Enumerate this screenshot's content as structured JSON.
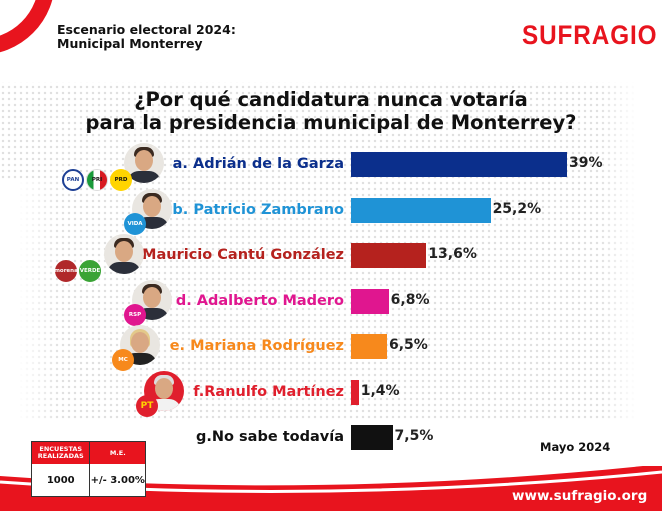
{
  "header": {
    "title_line1": "Escenario electoral 2024:",
    "title_line2": "Municipal Monterrey",
    "logo_text": "SUFRAGIO",
    "brand_color": "#e8141e"
  },
  "chart_data": {
    "type": "bar",
    "orientation": "horizontal",
    "title": "¿Por qué candidatura nunca votaría para la presidencia municipal de Monterrey?",
    "title_line1": "¿Por qué candidatura nunca votaría",
    "title_line2": "para la presidencia municipal de Monterrey?",
    "xlabel": "",
    "ylabel": "",
    "xlim": [
      0,
      39
    ],
    "grid": false,
    "legend": "none",
    "categories": [
      "a. Adrián de la Garza",
      "b. Patricio Zambrano",
      "c.Mauricio Cantú González",
      "d. Adalberto Madero",
      "e. Mariana Rodríguez",
      "f.Ranulfo Martínez",
      "g.No sabe todavía"
    ],
    "values": [
      39,
      25.2,
      13.6,
      6.8,
      6.5,
      1.4,
      7.5
    ],
    "value_labels": [
      "39%",
      "25,2%",
      "13,6%",
      "6,8%",
      "6,5%",
      "1,4%",
      "7,5%"
    ],
    "colors": [
      "#0b2f8c",
      "#1f93d6",
      "#b5221e",
      "#e0168f",
      "#f7891c",
      "#e01f2d",
      "#111111"
    ],
    "label_colors": [
      "#0b2f8c",
      "#1f93d6",
      "#b5221e",
      "#e0168f",
      "#f7891c",
      "#e01f2d",
      "#111111"
    ],
    "parties": [
      [
        "PAN",
        "PRI",
        "PRD"
      ],
      [
        "VIDA"
      ],
      [
        "morena",
        "VERDE"
      ],
      [
        "RSP"
      ],
      [
        "MC"
      ],
      [
        "PT"
      ],
      []
    ]
  },
  "survey": {
    "col1_header": "ENCUESTAS REALIZADAS",
    "col2_header": "M.E.",
    "col1_value": "1000",
    "col2_value": "+/- 3.00%"
  },
  "footer": {
    "date": "Mayo 2024",
    "url": "www.sufragio.org"
  }
}
